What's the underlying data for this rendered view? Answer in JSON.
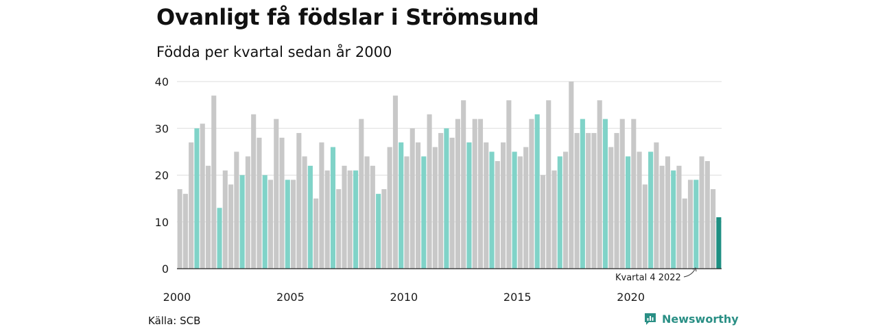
{
  "title": "Ovanligt få födslar i Strömsund",
  "subtitle": "Födda per kvartal sedan år 2000",
  "source": "Källa: SCB",
  "brand": {
    "name": "Newsworthy",
    "icon": "newsworthy-logo-icon"
  },
  "colors": {
    "default": "#c8c8c8",
    "q4": "#80d3c8",
    "latest": "#1e8f82",
    "grid": "#dddddd"
  },
  "chart_data": {
    "type": "bar",
    "title": "Ovanligt få födslar i Strömsund",
    "subtitle": "Födda per kvartal sedan år 2000",
    "xlabel": "",
    "ylabel": "",
    "ylim": [
      0,
      40
    ],
    "yticks": [
      0,
      10,
      20,
      30,
      40
    ],
    "xticks": [
      "2000",
      "2005",
      "2010",
      "2015",
      "2020"
    ],
    "grid": true,
    "highlight": "Fjärde kvartalet varje år markeras med turkos färg; senaste kvartalet i mörkare turkos",
    "annotation": {
      "text": "Kvartal 4 2022",
      "target": "2022 K4"
    },
    "series": [
      {
        "name": "Födda",
        "start_year": 2000,
        "values": [
          17,
          16,
          27,
          30,
          31,
          22,
          37,
          13,
          21,
          18,
          25,
          20,
          24,
          33,
          28,
          20,
          19,
          32,
          28,
          19,
          19,
          29,
          24,
          22,
          15,
          27,
          21,
          26,
          17,
          22,
          21,
          21,
          32,
          24,
          22,
          16,
          17,
          26,
          37,
          27,
          24,
          30,
          27,
          24,
          33,
          26,
          29,
          30,
          28,
          32,
          36,
          27,
          32,
          32,
          27,
          25,
          23,
          27,
          36,
          25,
          24,
          26,
          32,
          33,
          20,
          36,
          21,
          24,
          25,
          40,
          29,
          32,
          29,
          29,
          36,
          32,
          26,
          29,
          32,
          24,
          32,
          25,
          18,
          25,
          27,
          22,
          24,
          21,
          22,
          15,
          19,
          19,
          24,
          23,
          17,
          11
        ]
      }
    ]
  }
}
